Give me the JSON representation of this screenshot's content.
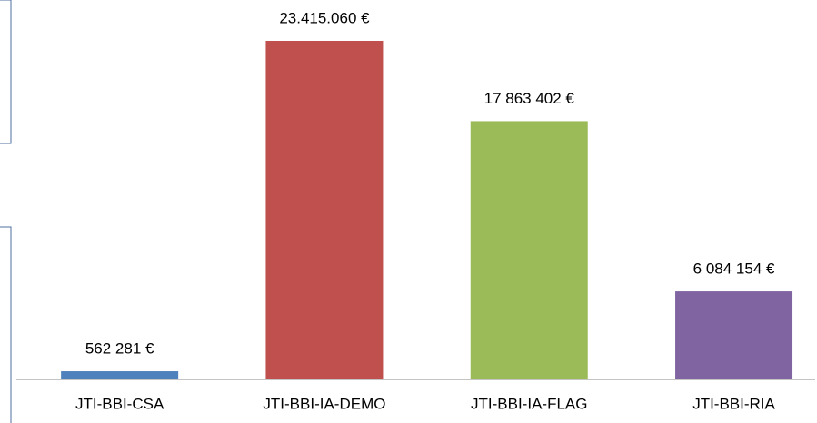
{
  "chart_data": {
    "type": "bar",
    "categories": [
      "JTI-BBI-CSA",
      "JTI-BBI-IA-DEMO",
      "JTI-BBI-IA-FLAG",
      "JTI-BBI-RIA"
    ],
    "values": [
      562281,
      23415060,
      17863402,
      6084154
    ],
    "value_labels": [
      "562 281 €",
      "23.415.060 €",
      "17 863 402 €",
      "6 084 154 €"
    ],
    "colors": [
      "#4f81bd",
      "#c0504d",
      "#9bbb59",
      "#8064a2"
    ]
  }
}
